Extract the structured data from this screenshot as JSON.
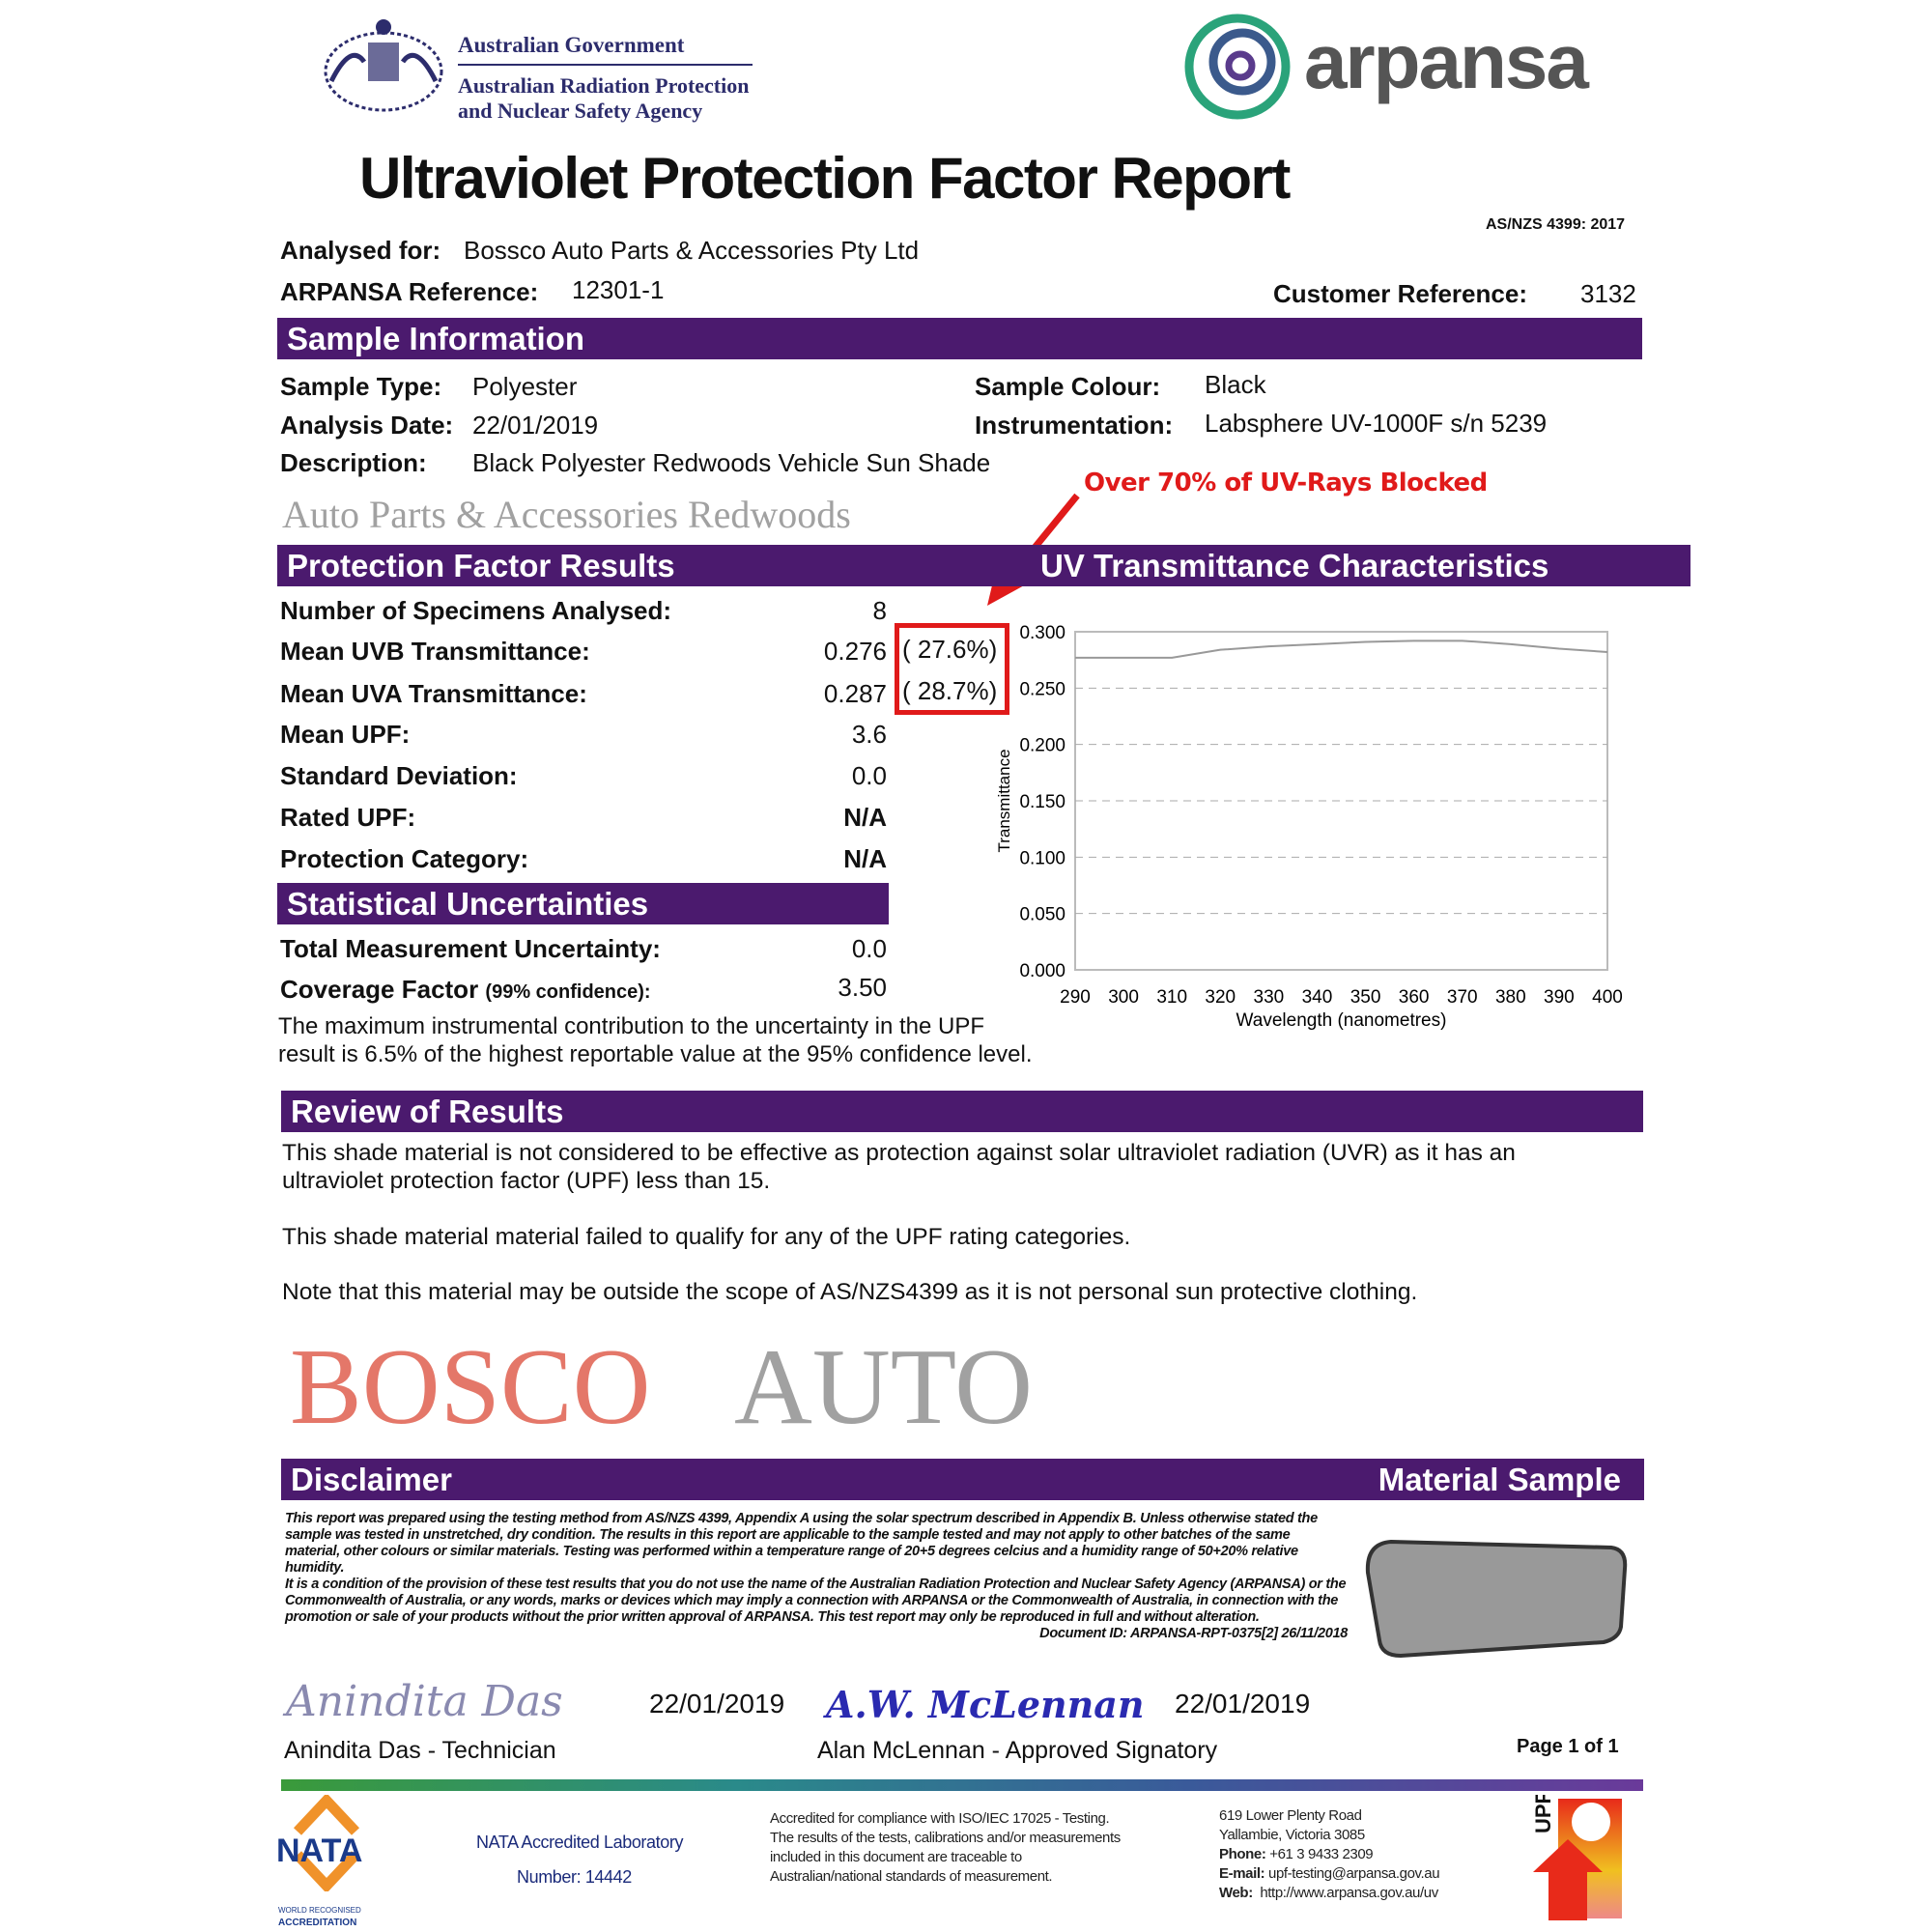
{
  "header": {
    "gov_line1": "Australian Government",
    "gov_line2": "Australian Radiation Protection",
    "gov_line3": "and Nuclear Safety Agency",
    "brand": "arpansa",
    "title": "Ultraviolet Protection Factor Report",
    "standard": "AS/NZS 4399: 2017"
  },
  "client": {
    "analysed_for_label": "Analysed for:",
    "analysed_for": "Bossco Auto Parts & Accessories Pty Ltd",
    "ref_label": "ARPANSA Reference:",
    "ref": "12301-1",
    "cust_ref_label": "Customer Reference:",
    "cust_ref": "3132"
  },
  "sample": {
    "heading": "Sample Information",
    "type_label": "Sample Type:",
    "type": "Polyester",
    "date_label": "Analysis Date:",
    "date": "22/01/2019",
    "desc_label": "Description:",
    "desc": "Black Polyester Redwoods Vehicle Sun Shade",
    "colour_label": "Sample Colour:",
    "colour": "Black",
    "instr_label": "Instrumentation:",
    "instr": "Labsphere UV-1000F s/n 5239"
  },
  "annotation": "Over 70% of UV-Rays Blocked",
  "results": {
    "heading": "Protection Factor Results",
    "rows": [
      {
        "label": "Number of Specimens Analysed:",
        "value": "8"
      },
      {
        "label": "Mean UVB Transmittance:",
        "value": "0.276",
        "pct": "( 27.6%)"
      },
      {
        "label": "Mean UVA Transmittance:",
        "value": "0.287",
        "pct": "( 28.7%)"
      },
      {
        "label": "Mean UPF:",
        "value": "3.6"
      },
      {
        "label": "Standard Deviation:",
        "value": "0.0"
      },
      {
        "label": "Rated UPF:",
        "value": "N/A"
      },
      {
        "label": "Protection Category:",
        "value": "N/A"
      }
    ]
  },
  "uncert": {
    "heading": "Statistical Uncertainties",
    "tmu_label": "Total Measurement Uncertainty:",
    "tmu": "0.0",
    "cf_label": "Coverage Factor",
    "cf_note": "(99% confidence):",
    "cf": "3.50",
    "para1": "The maximum instrumental contribution to the uncertainty in the UPF",
    "para2": "result is 6.5% of the highest reportable value at the 95% confidence level."
  },
  "chart_heading": "UV Transmittance Characteristics",
  "chart_data": {
    "type": "line",
    "xlabel": "Wavelength (nanometres)",
    "ylabel": "Transmittance",
    "xlim": [
      290,
      400
    ],
    "ylim": [
      0,
      0.3
    ],
    "grid": true,
    "xticks": [
      "290",
      "300",
      "310",
      "320",
      "330",
      "340",
      "350",
      "360",
      "370",
      "380",
      "390",
      "400"
    ],
    "yticks": [
      "0.000",
      "0.050",
      "0.100",
      "0.150",
      "0.200",
      "0.250",
      "0.300"
    ],
    "x": [
      290,
      300,
      310,
      320,
      330,
      340,
      350,
      360,
      370,
      380,
      390,
      400
    ],
    "y": [
      0.277,
      0.277,
      0.277,
      0.284,
      0.287,
      0.289,
      0.291,
      0.292,
      0.292,
      0.289,
      0.285,
      0.282
    ]
  },
  "review": {
    "heading": "Review of Results",
    "p1a": "This shade material is not considered to be effective as protection against solar ultraviolet radiation (UVR) as it has an",
    "p1b": "ultraviolet protection factor (UPF) less than 15.",
    "p2": "This shade material material failed to qualify for any of the UPF rating categories.",
    "p3": "Note that this material may be outside the scope of AS/NZS4399 as it is not personal sun protective clothing."
  },
  "disclaimer": {
    "heading": "Disclaimer",
    "sample_heading": "Material Sample",
    "text1": "This report was prepared using the testing method from AS/NZS 4399, Appendix A using the solar spectrum described in Appendix B. Unless otherwise stated the sample was tested in unstretched, dry condition. The results in this report are applicable to the sample tested and may not apply to other batches of the same material, other colours or similar materials. Testing was performed within a temperature range of 20+5 degrees celcius and a humidity range of 50+20% relative humidity.",
    "text2": "It is a condition of the provision of these test results that you do not use the name of the Australian Radiation Protection and Nuclear Safety Agency (ARPANSA) or the Commonwealth of Australia, or any words, marks or devices which may imply a connection with ARPANSA or the Commonwealth of Australia, in connection with the promotion or sale of your products without the prior written approval of ARPANSA. This test report may only be reproduced in full and without alteration.",
    "doc_id": "Document ID: ARPANSA-RPT-0375[2] 26/11/2018"
  },
  "signatures": {
    "sig1": "Anindita Das",
    "date1": "22/01/2019",
    "name1": "Anindita Das - Technician",
    "sig2": "A.W. McLennan",
    "date2": "22/01/2019",
    "name2": "Alan McLennan - Approved Signatory",
    "page": "Page 1 of 1"
  },
  "footer": {
    "nata": "NATA",
    "nata_sub1": "WORLD RECOGNISED",
    "nata_sub2": "ACCREDITATION",
    "lab": "NATA Accredited Laboratory",
    "number": "Number:  14442",
    "acc1": "Accredited for compliance with ISO/IEC 17025 - Testing.",
    "acc2": "The results of the tests, calibrations and/or measurements",
    "acc3": "included in this document are traceable to",
    "acc4": "Australian/national standards of measurement.",
    "addr1": "619 Lower Plenty Road",
    "addr2": "Yallambie, Victoria 3085",
    "phone_label": "Phone:",
    "phone": "+61 3 9433 2309",
    "email_label": "E-mail:",
    "email": "upf-testing@arpansa.gov.au",
    "web_label": "Web:",
    "web": "http://www.arpansa.gov.au/uv",
    "upf": "UPF"
  },
  "watermark": {
    "w1": "BOSCO",
    "w2": "AUTO",
    "w3": "Auto Parts & Accessories Redwoods"
  },
  "colors": {
    "band": "#4b1a6e",
    "accent_red": "#e01a1a",
    "watermark_red": "#e0604f",
    "watermark_grey": "#8a8a8a"
  }
}
